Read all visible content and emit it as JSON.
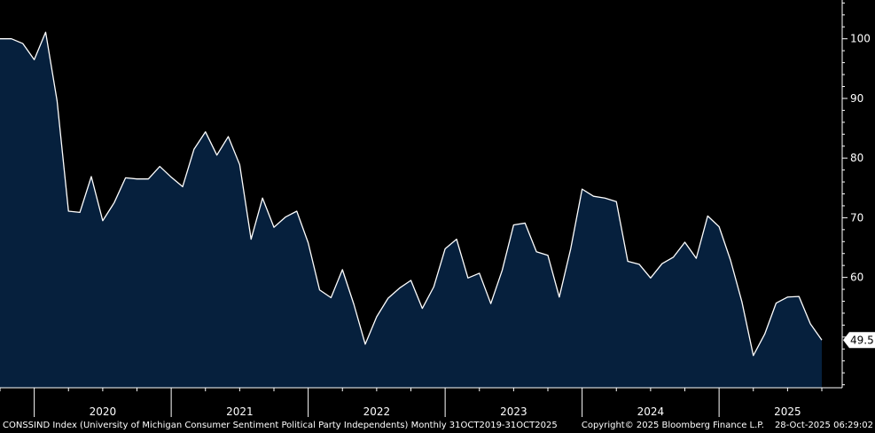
{
  "chart_data": {
    "type": "area",
    "title": "",
    "xlabel": "",
    "ylabel": "",
    "ylim": [
      41.5,
      106.5
    ],
    "y_ticks": [
      60,
      70,
      80,
      90,
      100
    ],
    "year_labels": [
      "2020",
      "2021",
      "2022",
      "2023",
      "2024",
      "2025"
    ],
    "last_value_label": "49.5",
    "grid": false,
    "fill_color": "#06203d",
    "line_color": "#ffffff",
    "series": [
      {
        "x": [
          "2019-10",
          "2019-11",
          "2019-12",
          "2020-01",
          "2020-02",
          "2020-03",
          "2020-04",
          "2020-05",
          "2020-06",
          "2020-07",
          "2020-08",
          "2020-09",
          "2020-10",
          "2020-11",
          "2020-12",
          "2021-01",
          "2021-02",
          "2021-03",
          "2021-04",
          "2021-05",
          "2021-06",
          "2021-07",
          "2021-08",
          "2021-09",
          "2021-10",
          "2021-11",
          "2021-12",
          "2022-01",
          "2022-02",
          "2022-03",
          "2022-04",
          "2022-05",
          "2022-06",
          "2022-07",
          "2022-08",
          "2022-09",
          "2022-10",
          "2022-11",
          "2022-12",
          "2023-01",
          "2023-02",
          "2023-03",
          "2023-04",
          "2023-05",
          "2023-06",
          "2023-07",
          "2023-08",
          "2023-09",
          "2023-10",
          "2023-11",
          "2023-12",
          "2024-01",
          "2024-02",
          "2024-03",
          "2024-04",
          "2024-05",
          "2024-06",
          "2024-07",
          "2024-08",
          "2024-09",
          "2024-10",
          "2024-11",
          "2024-12",
          "2025-01",
          "2025-02",
          "2025-03",
          "2025-04",
          "2025-05",
          "2025-06",
          "2025-07",
          "2025-08",
          "2025-09",
          "2025-10"
        ],
        "values": [
          100.0,
          100.0,
          99.2,
          96.5,
          101.1,
          89.6,
          71.1,
          70.9,
          76.9,
          69.5,
          72.5,
          76.7,
          76.5,
          76.5,
          78.6,
          76.8,
          75.2,
          81.5,
          84.4,
          80.5,
          83.6,
          78.9,
          66.4,
          73.3,
          68.4,
          70.1,
          71.1,
          65.8,
          57.9,
          56.6,
          61.3,
          55.5,
          48.8,
          53.4,
          56.5,
          58.2,
          59.5,
          54.8,
          58.4,
          64.8,
          66.4,
          59.9,
          60.7,
          55.6,
          61.2,
          68.8,
          69.1,
          64.3,
          63.7,
          56.7,
          64.8,
          74.8,
          73.6,
          73.3,
          72.7,
          62.7,
          62.2,
          59.9,
          62.3,
          63.4,
          65.9,
          63.2,
          70.3,
          68.5,
          62.9,
          55.9,
          46.9,
          50.5,
          55.7,
          56.7,
          56.8,
          52.2,
          49.5
        ]
      }
    ]
  },
  "footer": {
    "description": "CONSSIND Index (University of Michigan Consumer Sentiment Political Party Independents) Monthly 31OCT2019-31OCT2025",
    "copyright": "Copyright© 2025 Bloomberg Finance L.P.",
    "timestamp": "28-Oct-2025 06:29:02"
  }
}
